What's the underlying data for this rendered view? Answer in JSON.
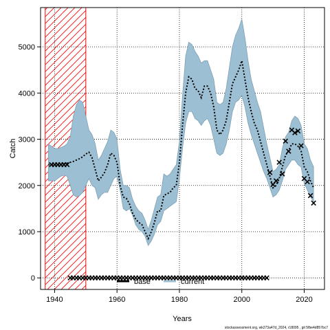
{
  "chart_data": {
    "type": "line",
    "xlabel": "Years",
    "ylabel": "Catch",
    "xlim": [
      1935.5,
      2026.5
    ],
    "ylim": [
      -250,
      5850
    ],
    "x_ticks": [
      1940,
      1960,
      1980,
      2000,
      2020
    ],
    "y_ticks": [
      0,
      1000,
      2000,
      3000,
      4000,
      5000
    ],
    "grid": true,
    "hatched_region": {
      "x_from": 1937,
      "x_to": 1950,
      "color": "#ff0000"
    },
    "colors": {
      "band": "#9cbfd3",
      "band_edge": "#7fa0b4",
      "line": "#000000",
      "hatch": "#ff0000"
    },
    "legend": {
      "placement": "bottom-center",
      "entries": [
        {
          "label": "base",
          "color": "#000000"
        },
        {
          "label": "current",
          "color": "#9cbfd3"
        }
      ]
    },
    "series": [
      {
        "name": "current",
        "x": [
          1938,
          1939,
          1940,
          1941,
          1942,
          1943,
          1944,
          1945,
          1946,
          1947,
          1948,
          1949,
          1950,
          1951,
          1952,
          1953,
          1954,
          1955,
          1956,
          1957,
          1958,
          1959,
          1960,
          1961,
          1962,
          1963,
          1964,
          1965,
          1966,
          1967,
          1968,
          1969,
          1970,
          1971,
          1972,
          1973,
          1974,
          1975,
          1976,
          1977,
          1978,
          1979,
          1980,
          1981,
          1982,
          1983,
          1984,
          1985,
          1986,
          1987,
          1988,
          1989,
          1990,
          1991,
          1992,
          1993,
          1994,
          1995,
          1996,
          1997,
          1998,
          1999,
          2000,
          2001,
          2002,
          2003,
          2004,
          2005,
          2006,
          2007,
          2008,
          2009,
          2010,
          2011,
          2012,
          2013,
          2014,
          2015,
          2016,
          2017,
          2018,
          2019,
          2020,
          2021,
          2022,
          2023
        ],
        "estimate": [
          2450,
          2450,
          2450,
          2450,
          2460,
          2470,
          2480,
          2500,
          2520,
          2550,
          2580,
          2620,
          2680,
          2720,
          2600,
          2350,
          2100,
          2180,
          2280,
          2450,
          2700,
          2650,
          2500,
          2000,
          1750,
          1720,
          1600,
          1400,
          1270,
          1200,
          1150,
          1000,
          850,
          1000,
          1200,
          1450,
          1450,
          1780,
          1820,
          1850,
          1950,
          2000,
          2500,
          3300,
          4000,
          4350,
          4300,
          4100,
          4050,
          3900,
          4150,
          4150,
          4000,
          3700,
          3200,
          3100,
          3200,
          3400,
          3800,
          4200,
          4350,
          4500,
          4700,
          4300,
          3900,
          3600,
          3350,
          3200,
          2950,
          2700,
          2450,
          2200,
          1950,
          2000,
          2150,
          2400,
          2650,
          2750,
          2900,
          2900,
          2850,
          2750,
          2400,
          2300,
          2100,
          1950
        ],
        "lower": [
          2100,
          2100,
          2100,
          2150,
          2200,
          2220,
          2200,
          2000,
          1800,
          1750,
          1780,
          1850,
          2000,
          2150,
          2000,
          1950,
          1700,
          1800,
          1850,
          1850,
          2000,
          2150,
          2200,
          1900,
          1500,
          1450,
          1500,
          1350,
          1150,
          1050,
          1000,
          900,
          700,
          800,
          950,
          1150,
          1220,
          1450,
          1500,
          1550,
          1600,
          1650,
          2150,
          2800,
          3350,
          3600,
          3600,
          3450,
          3400,
          3300,
          3400,
          3450,
          3300,
          3000,
          2700,
          2650,
          2700,
          2900,
          3200,
          3600,
          3800,
          3850,
          3950,
          3700,
          3350,
          3100,
          2900,
          2700,
          2500,
          2300,
          2150,
          1950,
          1750,
          1800,
          1900,
          2100,
          2350,
          2450,
          2550,
          2550,
          2450,
          2400,
          2050,
          1900,
          1750,
          1650
        ],
        "upper": [
          2900,
          2850,
          2800,
          2800,
          2820,
          2850,
          2900,
          3050,
          3500,
          3750,
          3850,
          3800,
          3500,
          3200,
          3100,
          2900,
          2550,
          2650,
          2800,
          2950,
          3200,
          3150,
          3000,
          2350,
          2000,
          2000,
          1950,
          1700,
          1550,
          1450,
          1400,
          1250,
          1050,
          1250,
          1500,
          1750,
          1800,
          2250,
          2200,
          2250,
          2350,
          2450,
          2950,
          3950,
          4800,
          5100,
          5050,
          4900,
          4800,
          4650,
          4700,
          4700,
          4500,
          4300,
          3800,
          3750,
          3800,
          4100,
          4550,
          5000,
          5250,
          5400,
          5600,
          5200,
          4700,
          4300,
          4050,
          3800,
          3600,
          3250,
          2900,
          2600,
          2300,
          2350,
          2450,
          2800,
          3050,
          3150,
          3400,
          3500,
          3450,
          3300,
          2900,
          2800,
          2550,
          2400
        ]
      },
      {
        "name": "base",
        "x": [
          1939,
          1940,
          1941,
          1942,
          1943,
          1944,
          1945,
          1946,
          1947,
          1948,
          1949,
          1950,
          1951,
          1952,
          1953,
          1954,
          1955,
          1956,
          1957,
          1958,
          1959,
          1960,
          1961,
          1962,
          1963,
          1964,
          1965,
          1966,
          1967,
          1968,
          1969,
          1970,
          1971,
          1972,
          1973,
          1974,
          1975,
          1976,
          1977,
          1978,
          1979,
          1980,
          1981,
          1982,
          1983,
          1984,
          1985,
          1986,
          1987,
          1988,
          1989,
          1990,
          1991,
          1992,
          1993,
          1994,
          1995,
          1996,
          1997,
          1998,
          1999,
          2000,
          2001,
          2002,
          2003,
          2004,
          2005,
          2006,
          2007,
          2008,
          2009,
          2010,
          2011,
          2012,
          2013,
          2014,
          2015,
          2016,
          2017,
          2018,
          2019,
          2020,
          2021,
          2022,
          2023
        ],
        "values": [
          2450,
          2450,
          2450,
          2450,
          2450,
          2450,
          0,
          0,
          0,
          0,
          0,
          0,
          0,
          0,
          0,
          0,
          0,
          0,
          0,
          0,
          0,
          0,
          0,
          0,
          0,
          0,
          0,
          0,
          0,
          0,
          0,
          0,
          0,
          0,
          0,
          0,
          0,
          0,
          0,
          0,
          0,
          0,
          0,
          0,
          0,
          0,
          0,
          0,
          0,
          0,
          0,
          0,
          0,
          0,
          0,
          0,
          0,
          0,
          0,
          0,
          0,
          0,
          0,
          0,
          0,
          0,
          0,
          0,
          0,
          0,
          2280,
          2020,
          2100,
          2500,
          2250,
          2960,
          2740,
          3200,
          3140,
          3180,
          2860,
          2150,
          2080,
          1780,
          1620
        ]
      }
    ]
  },
  "footer": "stockassessment.org, wk273a47d_2024, r18095 , git 5fbe4d857bc7"
}
